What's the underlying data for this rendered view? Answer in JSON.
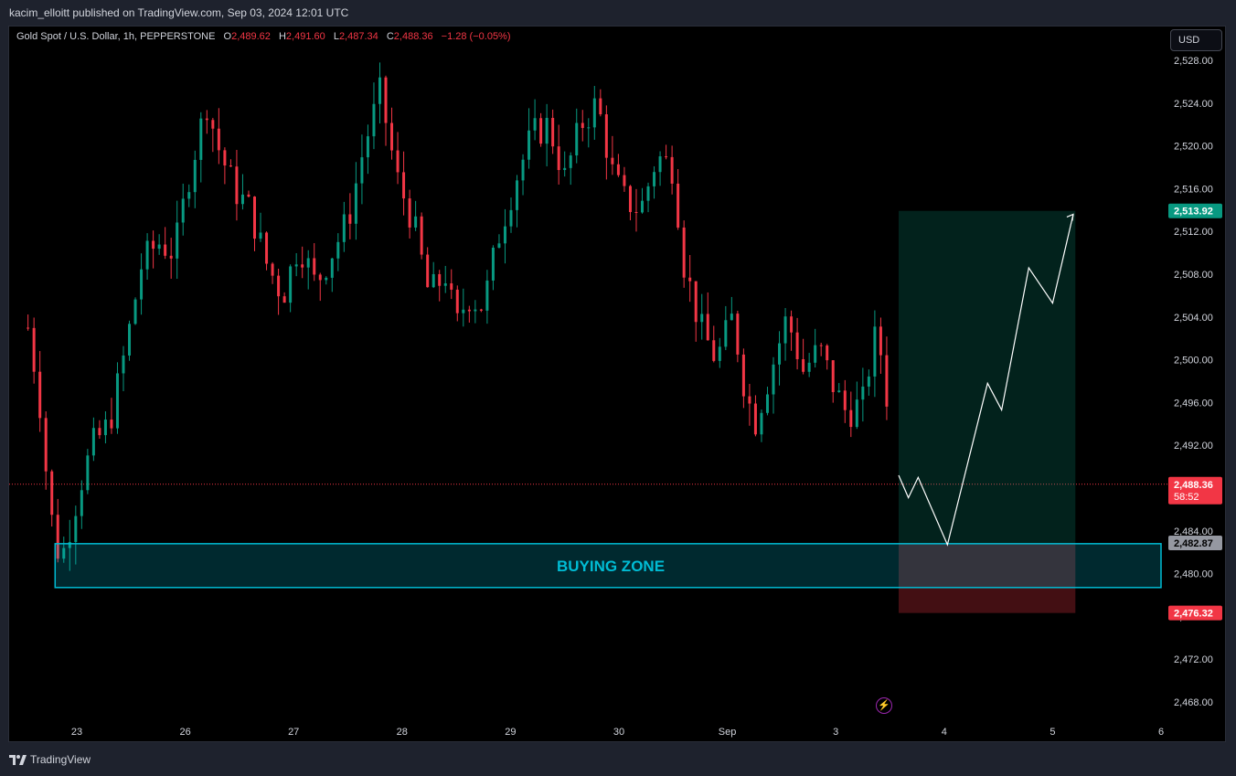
{
  "header": {
    "publisher": "kacim_elloitt published on TradingView.com, Sep 03, 2024 12:01 UTC"
  },
  "legend": {
    "symbol": "Gold Spot / U.S. Dollar, 1h, PEPPERSTONE",
    "o_label": "O",
    "o_value": "2,489.62",
    "h_label": "H",
    "h_value": "2,491.60",
    "l_label": "L",
    "l_value": "2,487.34",
    "c_label": "C",
    "c_value": "2,488.36",
    "change": "−1.28 (−0.05%)"
  },
  "currency_button": "USD",
  "footer": {
    "brand": "TradingView"
  },
  "colors": {
    "up": "#089981",
    "down": "#f23645",
    "zone": "#00bcd4",
    "target": "#089981",
    "stop": "#f23645",
    "price": "#f23645"
  },
  "chart_data": {
    "type": "candlestick",
    "ylim": [
      2466,
      2530
    ],
    "y_ticks": [
      2468,
      2472,
      2476,
      2480,
      2484,
      2488,
      2492,
      2496,
      2500,
      2504,
      2508,
      2512,
      2516,
      2520,
      2524,
      2528
    ],
    "x_ticks": [
      {
        "label": "23",
        "day": 1
      },
      {
        "label": "26",
        "day": 2
      },
      {
        "label": "27",
        "day": 3
      },
      {
        "label": "28",
        "day": 4
      },
      {
        "label": "29",
        "day": 5
      },
      {
        "label": "30",
        "day": 6
      },
      {
        "label": "Sep",
        "day": 7
      },
      {
        "label": "3",
        "day": 8
      },
      {
        "label": "4",
        "day": 9
      },
      {
        "label": "5",
        "day": 10
      },
      {
        "label": "6",
        "day": 11
      }
    ],
    "price_path": [
      [
        0.55,
        2503
      ],
      [
        0.65,
        2497
      ],
      [
        0.75,
        2486
      ],
      [
        0.85,
        2481
      ],
      [
        0.95,
        2485
      ],
      [
        1.05,
        2489
      ],
      [
        1.15,
        2492
      ],
      [
        1.3,
        2494
      ],
      [
        1.45,
        2501
      ],
      [
        1.6,
        2509
      ],
      [
        1.75,
        2511
      ],
      [
        1.9,
        2510
      ],
      [
        2.05,
        2518
      ],
      [
        2.2,
        2524
      ],
      [
        2.3,
        2520
      ],
      [
        2.45,
        2516
      ],
      [
        2.6,
        2514
      ],
      [
        2.75,
        2509
      ],
      [
        2.9,
        2506
      ],
      [
        3.05,
        2511
      ],
      [
        3.2,
        2507
      ],
      [
        3.35,
        2510
      ],
      [
        3.5,
        2513
      ],
      [
        3.65,
        2520
      ],
      [
        3.8,
        2525
      ],
      [
        3.95,
        2517
      ],
      [
        4.1,
        2513
      ],
      [
        4.25,
        2506
      ],
      [
        4.4,
        2508
      ],
      [
        4.5,
        2503
      ],
      [
        4.6,
        2506
      ],
      [
        4.75,
        2505
      ],
      [
        4.9,
        2512
      ],
      [
        5.05,
        2517
      ],
      [
        5.2,
        2521
      ],
      [
        5.35,
        2522
      ],
      [
        5.5,
        2517
      ],
      [
        5.65,
        2522
      ],
      [
        5.8,
        2524
      ],
      [
        5.95,
        2517
      ],
      [
        6.05,
        2515
      ],
      [
        6.2,
        2514
      ],
      [
        6.35,
        2519
      ],
      [
        6.5,
        2518
      ],
      [
        6.6,
        2509
      ],
      [
        6.75,
        2503
      ],
      [
        6.9,
        2500
      ],
      [
        7.05,
        2504
      ],
      [
        7.15,
        2498
      ],
      [
        7.25,
        2494
      ],
      [
        7.4,
        2499
      ],
      [
        7.55,
        2504
      ],
      [
        7.7,
        2499
      ],
      [
        7.85,
        2501
      ],
      [
        8.0,
        2497
      ],
      [
        8.1,
        2495
      ],
      [
        8.25,
        2496
      ],
      [
        8.35,
        2502
      ],
      [
        8.45,
        2500
      ],
      [
        8.52,
        2488.36
      ]
    ],
    "projection": [
      [
        8.58,
        2489.2
      ],
      [
        8.67,
        2487.1
      ],
      [
        8.76,
        2489.0
      ],
      [
        9.03,
        2482.7
      ],
      [
        9.4,
        2497.8
      ],
      [
        9.53,
        2495.3
      ],
      [
        9.78,
        2508.6
      ],
      [
        10.0,
        2505.3
      ],
      [
        10.19,
        2513.6
      ]
    ],
    "buying_zone": {
      "label": "BUYING ZONE",
      "top": 2482.8,
      "bottom": 2478.7,
      "x_start": 0.8,
      "x_end": 11.0
    },
    "long_position": {
      "entry": 2482.87,
      "target": 2513.92,
      "stop": 2476.32,
      "x_start": 8.58,
      "x_end": 10.21
    },
    "price_labels": {
      "target": "2,513.92",
      "entry": "2,482.87",
      "stop": "2,476.32",
      "last": "2,488.36",
      "countdown": "58:52"
    },
    "last_price": 2488.36
  }
}
